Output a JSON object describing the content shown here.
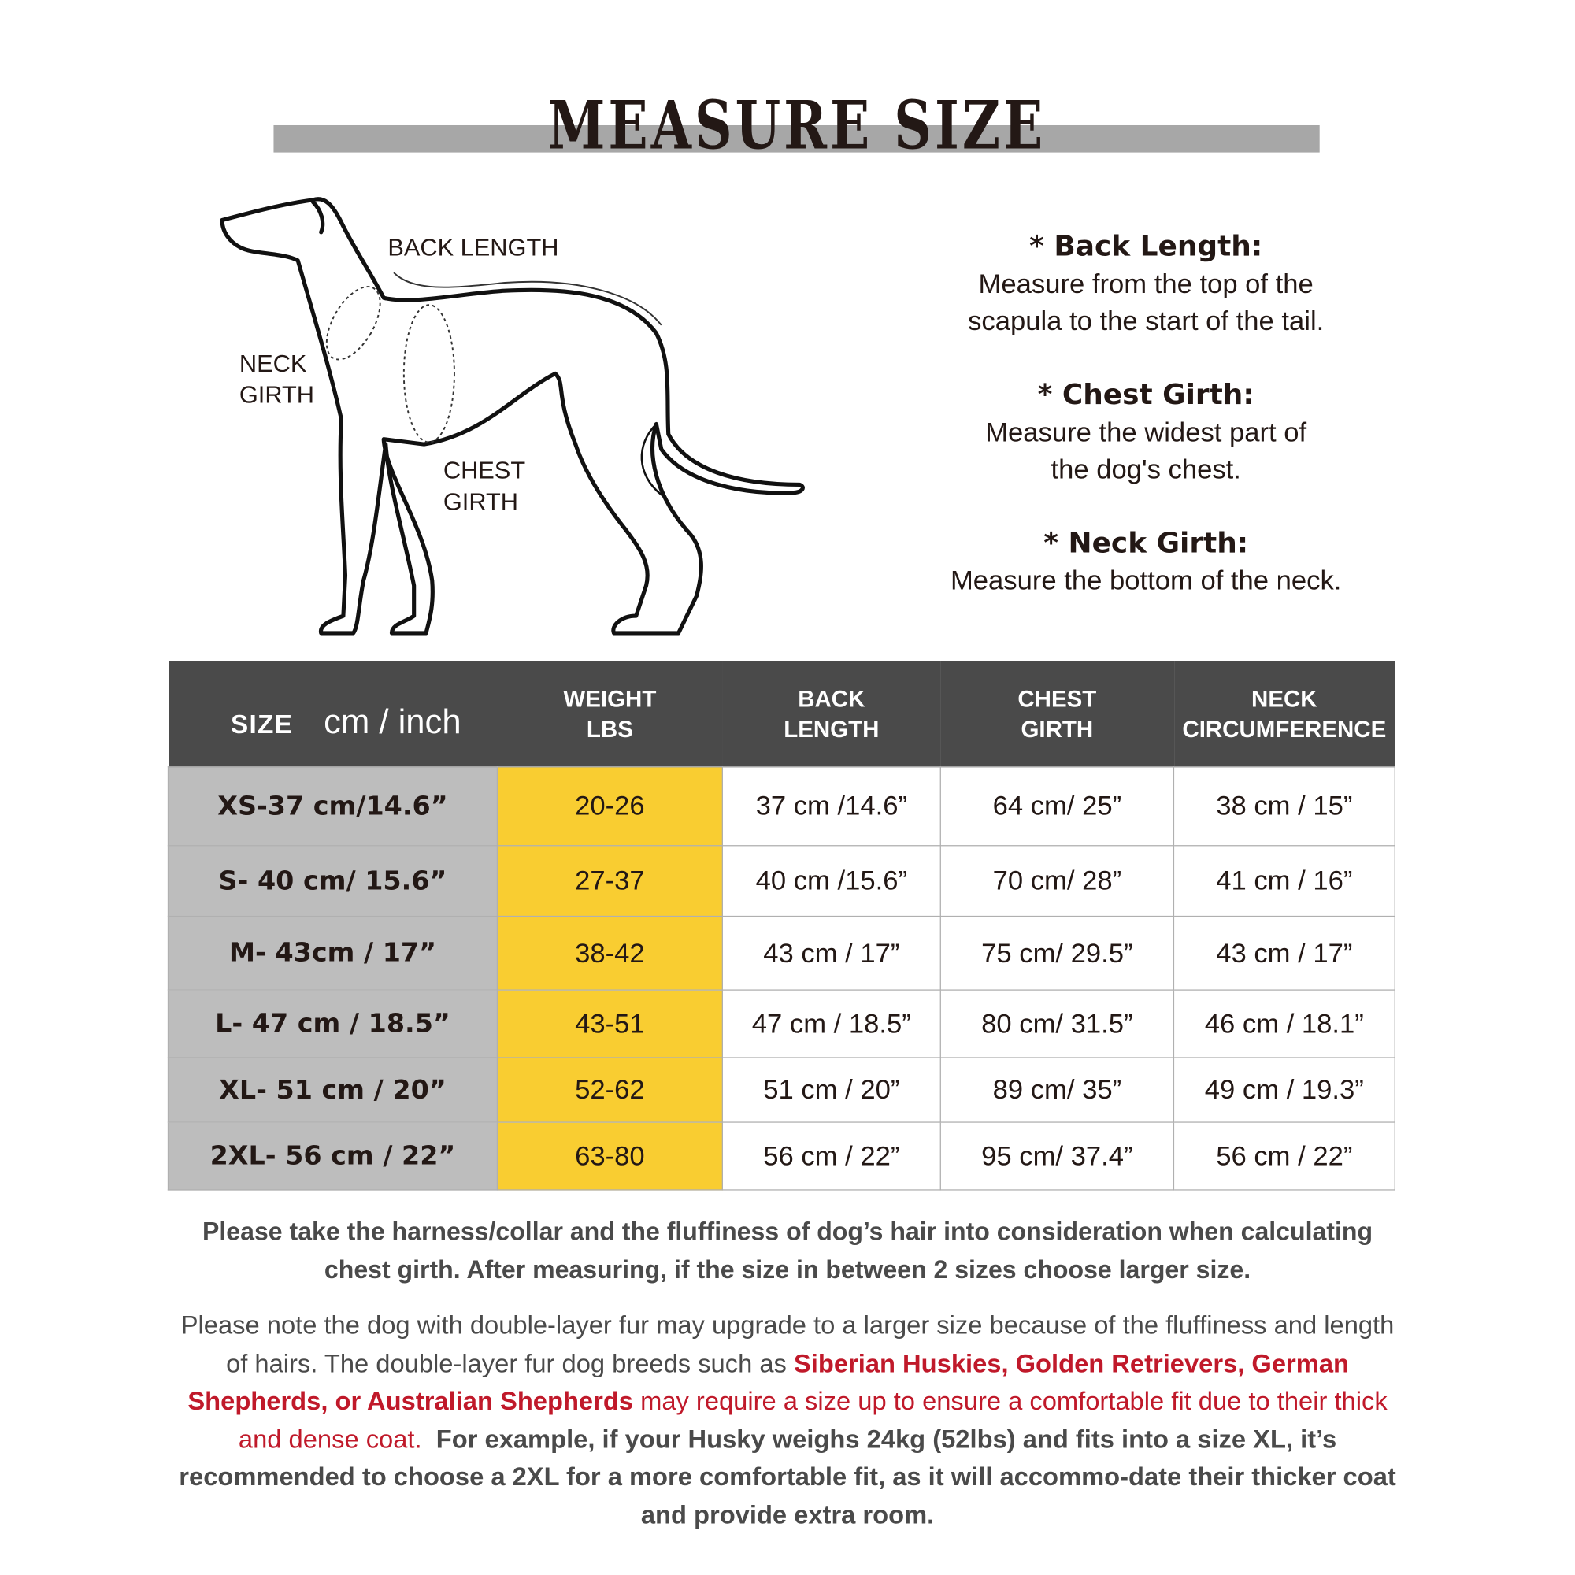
{
  "title": "MEASURE SIZE",
  "diagram": {
    "back_length": "BACK LENGTH",
    "neck_girth": [
      "NECK",
      "GIRTH"
    ],
    "chest_girth": [
      "CHEST",
      "GIRTH"
    ]
  },
  "descriptions": [
    {
      "heading": "* Back Length:",
      "lines": [
        "Measure from the top of the",
        "scapula to the start of the tail."
      ]
    },
    {
      "heading": "* Chest Girth:",
      "lines": [
        "Measure the widest part of",
        "the dog's chest."
      ]
    },
    {
      "heading": "* Neck Girth:",
      "lines": [
        "Measure the bottom of the neck."
      ]
    }
  ],
  "table": {
    "headers": {
      "size": "SIZE",
      "size_unit": "cm / inch",
      "weight": [
        "WEIGHT",
        "LBS"
      ],
      "back": [
        "BACK",
        "LENGTH"
      ],
      "chest": [
        "CHEST",
        "GIRTH"
      ],
      "neck": [
        "NECK",
        "CIRCUMFERENCE"
      ]
    },
    "rows": [
      {
        "size": "XS-37 cm/14.6”",
        "weight": "20-26",
        "back": "37 cm /14.6”",
        "chest": "64 cm/ 25”",
        "neck": "38 cm / 15”"
      },
      {
        "size": "S- 40 cm/ 15.6”",
        "weight": "27-37",
        "back": "40 cm /15.6”",
        "chest": "70 cm/ 28”",
        "neck": "41 cm / 16”"
      },
      {
        "size": "M- 43cm / 17”",
        "weight": "38-42",
        "back": "43 cm / 17”",
        "chest": "75 cm/ 29.5”",
        "neck": "43 cm / 17”"
      },
      {
        "size": "L- 47 cm / 18.5”",
        "weight": "43-51",
        "back": "47 cm / 18.5”",
        "chest": "80 cm/ 31.5”",
        "neck": "46 cm / 18.1”"
      },
      {
        "size": "XL- 51 cm / 20”",
        "weight": "52-62",
        "back": "51 cm / 20”",
        "chest": "89 cm/ 35”",
        "neck": "49 cm / 19.3”"
      },
      {
        "size": "2XL- 56 cm / 22”",
        "weight": "63-80",
        "back": "56 cm / 22”",
        "chest": "95 cm/ 37.4”",
        "neck": "56 cm / 22”"
      }
    ]
  },
  "notes": {
    "bold_note": "Please take the harness/collar and the fluffiness of dog’s hair into consideration when calculating chest girth. After measuring, if the size in between 2 sizes choose larger size.",
    "fur_intro": "Please note the dog with double-layer fur may upgrade to a larger size because of the fluffiness and length of hairs. The double-layer fur dog breeds such as ",
    "fur_breeds": "Siberian Huskies, Golden Retrievers, German Shepherds, or Australian Shepherds",
    "fur_red_tail": " may require a size up to ensure a comfortable fit due to their thick and dense coat.",
    "fur_example": "For example, if your Husky weighs 24kg (52lbs) and fits into a size XL, it’s recommended to choose a 2XL for a more comfortable fit, as it will accommo-date their thicker coat and provide extra room."
  },
  "colors": {
    "header_bg": "#4a4a4a",
    "size_col": "#bdbdbd",
    "weight_col": "#f9cd31",
    "highlight_red": "#c0192a",
    "title_bar": "#a7a7a7"
  }
}
